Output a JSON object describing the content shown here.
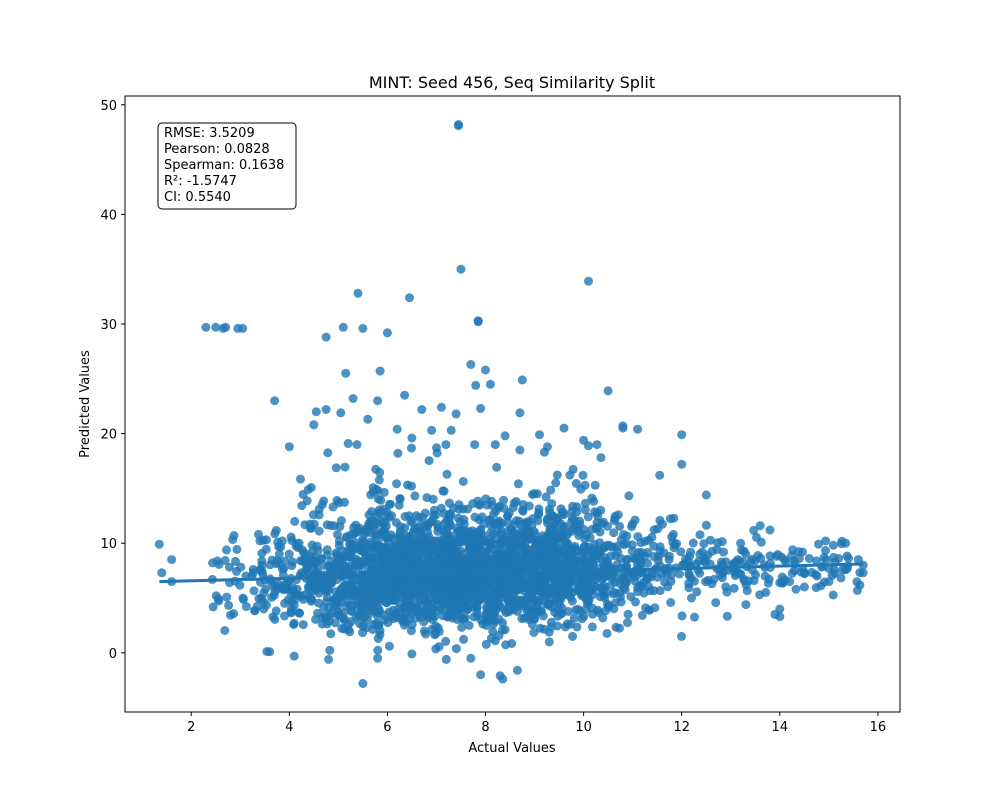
{
  "chart_data": {
    "type": "scatter",
    "title": "MINT: Seed 456, Seq Similarity Split",
    "xlabel": "Actual Values",
    "ylabel": "Predicted Values",
    "xlim": [
      0.65,
      16.45
    ],
    "ylim": [
      -5.4,
      50.8
    ],
    "xticks": [
      2,
      4,
      6,
      8,
      10,
      12,
      14,
      16
    ],
    "yticks": [
      0,
      10,
      20,
      30,
      40,
      50
    ],
    "grid": false,
    "point_color": "#1f77b4",
    "stats": [
      "RMSE: 3.5209",
      "Pearson: 0.0828",
      "Spearman: 0.1638",
      "R²: -1.5747",
      "CI: 0.5540"
    ],
    "regression_line": {
      "x": [
        1.35,
        15.7
      ],
      "y": [
        6.5,
        8.1
      ]
    },
    "outliers": [
      [
        7.45,
        48.2
      ],
      [
        7.45,
        48.1
      ],
      [
        7.5,
        35.0
      ],
      [
        10.1,
        33.9
      ],
      [
        5.4,
        32.8
      ],
      [
        6.45,
        32.4
      ],
      [
        7.85,
        30.3
      ],
      [
        7.85,
        30.2
      ],
      [
        2.3,
        29.7
      ],
      [
        2.5,
        29.7
      ],
      [
        2.7,
        29.7
      ],
      [
        2.65,
        29.6
      ],
      [
        2.95,
        29.6
      ],
      [
        3.05,
        29.6
      ],
      [
        5.1,
        29.7
      ],
      [
        5.5,
        29.6
      ],
      [
        6.0,
        29.2
      ],
      [
        4.75,
        28.8
      ],
      [
        7.7,
        26.3
      ],
      [
        8.0,
        25.8
      ],
      [
        5.85,
        25.7
      ],
      [
        5.15,
        25.5
      ],
      [
        8.75,
        24.9
      ],
      [
        7.8,
        24.4
      ],
      [
        8.1,
        24.5
      ],
      [
        10.5,
        23.9
      ],
      [
        3.7,
        23.0
      ],
      [
        6.35,
        23.5
      ],
      [
        5.8,
        23.0
      ],
      [
        5.3,
        23.2
      ],
      [
        7.9,
        22.3
      ],
      [
        4.75,
        22.2
      ],
      [
        4.55,
        22.0
      ],
      [
        5.05,
        21.9
      ],
      [
        7.4,
        21.8
      ],
      [
        8.7,
        21.9
      ],
      [
        6.7,
        22.2
      ],
      [
        7.1,
        22.4
      ],
      [
        10.8,
        20.7
      ],
      [
        10.8,
        20.5
      ],
      [
        11.1,
        20.4
      ],
      [
        12.0,
        19.9
      ],
      [
        9.6,
        20.5
      ],
      [
        4.0,
        18.8
      ],
      [
        12.0,
        17.2
      ],
      [
        11.55,
        16.2
      ],
      [
        12.5,
        14.4
      ],
      [
        1.35,
        9.9
      ],
      [
        1.6,
        8.5
      ],
      [
        1.6,
        6.5
      ],
      [
        1.4,
        7.3
      ],
      [
        14.5,
        6.0
      ],
      [
        14.0,
        4.0
      ],
      [
        14.0,
        3.3
      ],
      [
        13.9,
        3.5
      ],
      [
        14.0,
        6.4
      ],
      [
        3.6,
        0.1
      ],
      [
        4.1,
        -0.3
      ],
      [
        4.8,
        -0.6
      ],
      [
        5.5,
        -2.8
      ],
      [
        5.8,
        -0.5
      ],
      [
        6.5,
        -0.1
      ],
      [
        7.2,
        -0.6
      ],
      [
        7.7,
        -0.5
      ],
      [
        7.9,
        -2.0
      ],
      [
        8.3,
        -2.1
      ],
      [
        8.35,
        -2.4
      ],
      [
        8.65,
        -1.6
      ],
      [
        8.2,
        1.1
      ],
      [
        9.3,
        1.0
      ],
      [
        13.2,
        10.0
      ],
      [
        13.6,
        11.6
      ],
      [
        13.8,
        11.2
      ],
      [
        12.9,
        8.3
      ],
      [
        15.0,
        6.5
      ],
      [
        15.7,
        7.3
      ],
      [
        15.7,
        8.0
      ],
      [
        15.6,
        8.5
      ],
      [
        15.4,
        8.6
      ],
      [
        15.2,
        8.6
      ],
      [
        14.9,
        8.7
      ],
      [
        14.6,
        8.6
      ],
      [
        14.4,
        8.6
      ],
      [
        14.1,
        8.5
      ],
      [
        13.5,
        8.4
      ],
      [
        14.2,
        6.5
      ],
      [
        13.7,
        7.0
      ],
      [
        6.2,
        20.4
      ],
      [
        6.5,
        19.6
      ],
      [
        5.6,
        21.3
      ],
      [
        7.3,
        20.3
      ],
      [
        9.1,
        19.9
      ],
      [
        10.0,
        19.4
      ],
      [
        10.1,
        18.9
      ],
      [
        5.2,
        19.1
      ],
      [
        8.4,
        19.8
      ],
      [
        8.2,
        19.0
      ],
      [
        4.5,
        20.8
      ],
      [
        6.9,
        20.3
      ],
      [
        9.2,
        18.3
      ],
      [
        7.0,
        18.7
      ],
      [
        8.7,
        18.5
      ]
    ]
  }
}
